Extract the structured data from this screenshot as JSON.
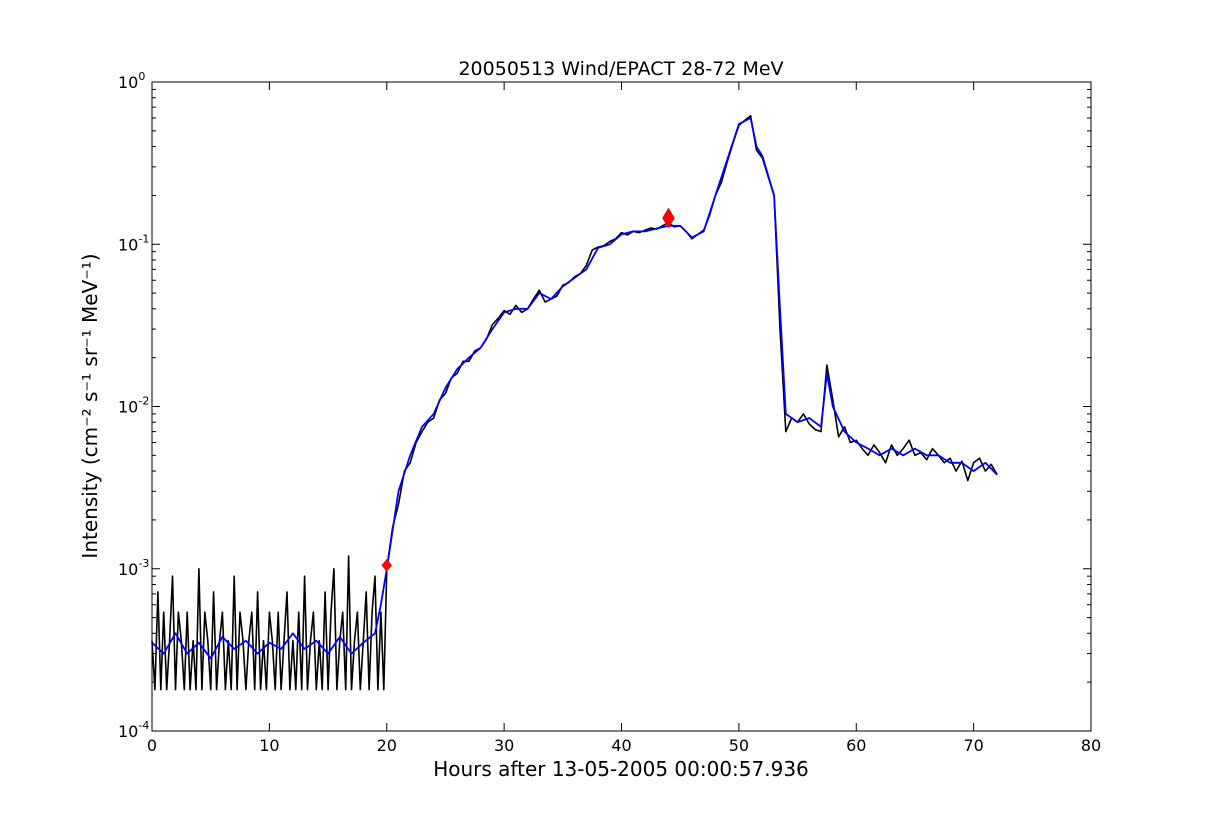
{
  "chart_data": {
    "type": "line",
    "title": "20050513 Wind/EPACT 28-72 MeV",
    "xlabel": "Hours after 13-05-2005 00:00:57.936",
    "ylabel": "Intensity (cm⁻² s⁻¹ sr⁻¹ MeV⁻¹)",
    "xlim": [
      0,
      80
    ],
    "ylim": [
      0.0001,
      1
    ],
    "yscale": "log",
    "grid": false,
    "x_ticks": [
      "0",
      "10",
      "20",
      "30",
      "40",
      "50",
      "60",
      "70",
      "80"
    ],
    "y_ticks": [
      {
        "base": "10",
        "exp": "-4"
      },
      {
        "base": "10",
        "exp": "-3"
      },
      {
        "base": "10",
        "exp": "-2"
      },
      {
        "base": "10",
        "exp": "-1"
      },
      {
        "base": "10",
        "exp": "0"
      }
    ],
    "colors": {
      "raw": "#000000",
      "smoothed": "#0000ff",
      "marker": "#ff0000"
    },
    "series": [
      {
        "role": "raw",
        "segments": [
          {
            "t0": 0,
            "dt": 0.25,
            "values": [
              0.00036,
              0.00018,
              0.00072,
              0.00018,
              0.00054,
              0.00018,
              0.00036,
              0.0009,
              0.00018,
              0.00054,
              0.00036,
              0.00018,
              0.00054,
              0.00018,
              0.00036,
              0.00018,
              0.001,
              0.00018,
              0.00054,
              0.00036,
              0.00018,
              0.00072,
              0.00018,
              0.00036,
              0.00054,
              0.00018,
              0.00036,
              0.00018,
              0.0009,
              0.00018,
              0.00054,
              0.00036,
              0.00018,
              0.00036,
              0.00054,
              0.00018,
              0.00072,
              0.00018,
              0.00036,
              0.00018,
              0.00054,
              0.00036,
              0.00018,
              0.00054,
              0.00018,
              0.00036,
              0.00072,
              0.00018,
              0.00036,
              0.00018,
              0.00054,
              0.00018,
              0.0009,
              0.00018,
              0.00036,
              0.00054,
              0.00018,
              0.00036,
              0.00018,
              0.00072,
              0.00018,
              0.00054,
              0.001,
              0.00018,
              0.00036,
              0.00054,
              0.00018,
              0.0012,
              0.00018,
              0.00036,
              0.00054,
              0.00018,
              0.00036,
              0.00072,
              0.00018,
              0.00054,
              0.0009,
              0.00018,
              0.00054,
              0.00018
            ]
          },
          {
            "t0": 20,
            "dt": 0.5,
            "values": [
              0.001,
              0.0018,
              0.0025,
              0.004,
              0.0045,
              0.006,
              0.007,
              0.008,
              0.0085,
              0.011,
              0.012,
              0.015,
              0.016,
              0.019,
              0.019,
              0.022,
              0.023,
              0.026,
              0.032,
              0.035,
              0.039,
              0.037,
              0.042,
              0.038,
              0.04,
              0.046,
              0.052,
              0.044,
              0.046,
              0.048,
              0.056,
              0.058,
              0.063,
              0.066,
              0.074,
              0.092,
              0.096,
              0.098,
              0.104,
              0.108,
              0.118,
              0.114,
              0.12,
              0.118,
              0.122,
              0.126,
              0.124,
              0.13,
              0.136,
              0.128,
              0.13,
              0.12,
              0.108,
              0.115,
              0.122,
              0.15,
              0.2,
              0.24,
              0.32,
              0.42,
              0.54,
              0.58,
              0.62,
              0.38,
              0.34,
              0.26,
              0.2,
              0.03,
              0.007,
              0.0085,
              0.008,
              0.009,
              0.0078,
              0.0072,
              0.007,
              0.018,
              0.011,
              0.0065,
              0.0075,
              0.006,
              0.0062,
              0.0055,
              0.005,
              0.0058,
              0.0052,
              0.0045,
              0.0058,
              0.005,
              0.0055,
              0.0062,
              0.005,
              0.0052,
              0.0047,
              0.0055,
              0.005,
              0.0045,
              0.0048,
              0.004,
              0.0046,
              0.0035,
              0.0045,
              0.0048,
              0.004,
              0.0044,
              0.0038
            ]
          }
        ]
      },
      {
        "role": "smoothed",
        "points": [
          [
            0,
            0.00035
          ],
          [
            1,
            0.0003
          ],
          [
            2,
            0.0004
          ],
          [
            3,
            0.0003
          ],
          [
            4,
            0.00035
          ],
          [
            5,
            0.00028
          ],
          [
            6,
            0.00038
          ],
          [
            7,
            0.00032
          ],
          [
            8,
            0.00036
          ],
          [
            9,
            0.0003
          ],
          [
            10,
            0.00035
          ],
          [
            11,
            0.00032
          ],
          [
            12,
            0.0004
          ],
          [
            13,
            0.00032
          ],
          [
            14,
            0.00036
          ],
          [
            15,
            0.0003
          ],
          [
            16,
            0.00038
          ],
          [
            17,
            0.0003
          ],
          [
            18,
            0.00035
          ],
          [
            19,
            0.0004
          ],
          [
            19.5,
            0.0006
          ],
          [
            20,
            0.001
          ],
          [
            21,
            0.003
          ],
          [
            22,
            0.005
          ],
          [
            23,
            0.0075
          ],
          [
            24,
            0.009
          ],
          [
            25,
            0.013
          ],
          [
            26,
            0.017
          ],
          [
            27,
            0.02
          ],
          [
            28,
            0.023
          ],
          [
            29,
            0.03
          ],
          [
            30,
            0.038
          ],
          [
            31,
            0.04
          ],
          [
            32,
            0.04
          ],
          [
            33,
            0.05
          ],
          [
            34,
            0.046
          ],
          [
            35,
            0.055
          ],
          [
            36,
            0.062
          ],
          [
            37,
            0.07
          ],
          [
            38,
            0.095
          ],
          [
            39,
            0.1
          ],
          [
            40,
            0.115
          ],
          [
            41,
            0.12
          ],
          [
            42,
            0.12
          ],
          [
            43,
            0.125
          ],
          [
            44,
            0.13
          ],
          [
            45,
            0.13
          ],
          [
            46,
            0.11
          ],
          [
            47,
            0.12
          ],
          [
            48,
            0.2
          ],
          [
            49,
            0.33
          ],
          [
            50,
            0.55
          ],
          [
            51,
            0.6
          ],
          [
            51.5,
            0.4
          ],
          [
            52,
            0.35
          ],
          [
            53,
            0.2
          ],
          [
            53.5,
            0.04
          ],
          [
            54,
            0.009
          ],
          [
            55,
            0.008
          ],
          [
            56,
            0.0085
          ],
          [
            57,
            0.0075
          ],
          [
            57.5,
            0.016
          ],
          [
            58,
            0.01
          ],
          [
            59,
            0.007
          ],
          [
            60,
            0.006
          ],
          [
            61,
            0.0055
          ],
          [
            62,
            0.005
          ],
          [
            63,
            0.0055
          ],
          [
            64,
            0.005
          ],
          [
            65,
            0.0055
          ],
          [
            66,
            0.005
          ],
          [
            67,
            0.005
          ],
          [
            68,
            0.0045
          ],
          [
            69,
            0.0045
          ],
          [
            70,
            0.004
          ],
          [
            71,
            0.0045
          ],
          [
            72,
            0.0038
          ]
        ]
      }
    ],
    "markers": [
      {
        "x": 20,
        "y": 0.00105,
        "shape": "diamond"
      },
      {
        "x": 44,
        "y": 0.145,
        "shape": "diamond"
      }
    ]
  }
}
